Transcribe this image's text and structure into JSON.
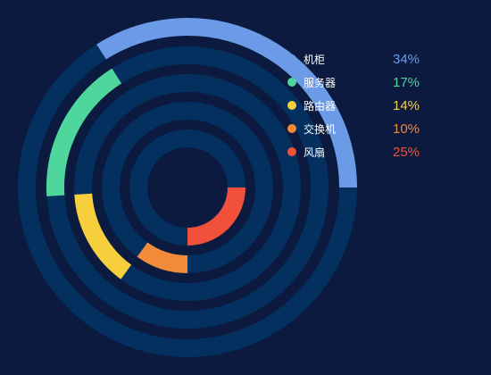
{
  "chart_data": {
    "type": "pie",
    "series": [
      {
        "name": "机柜",
        "value": 34,
        "label": "34%",
        "color": "#6b9be6"
      },
      {
        "name": "服务器",
        "value": 17,
        "label": "17%",
        "color": "#4fd69c"
      },
      {
        "name": "路由器",
        "value": 14,
        "label": "14%",
        "color": "#f7cf3d"
      },
      {
        "name": "交换机",
        "value": 10,
        "label": "10%",
        "color": "#f28a3a"
      },
      {
        "name": "风扇",
        "value": 25,
        "label": "25%",
        "color": "#f1503a"
      }
    ]
  },
  "colors": {
    "background": "#0b1a3e",
    "track": "#03305f"
  }
}
